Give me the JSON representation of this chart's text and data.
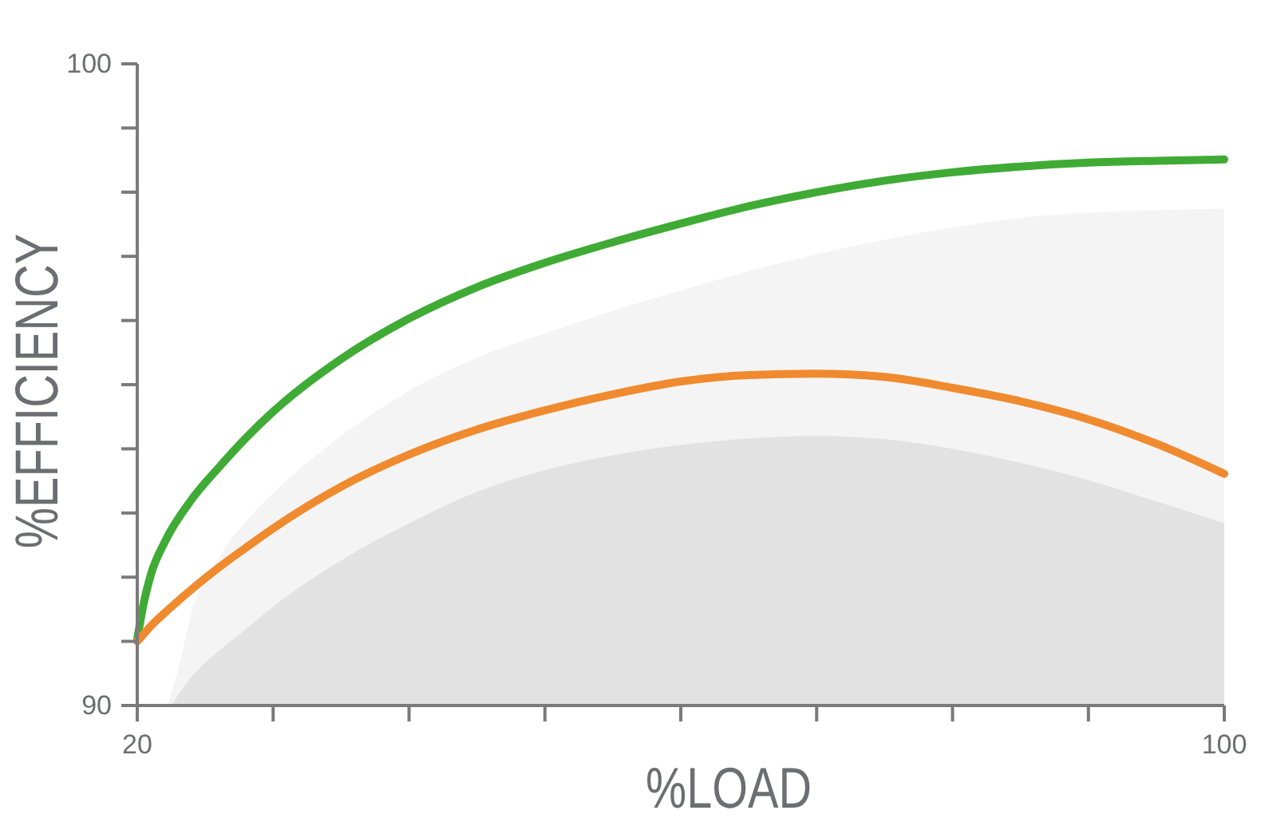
{
  "chart_data": {
    "type": "line",
    "xlabel": "%LOAD",
    "ylabel": "%EFFICIENCY",
    "xlim": [
      20,
      100
    ],
    "ylim": [
      90,
      100
    ],
    "xticks": [
      20,
      {
        "value": 30,
        "label": null
      },
      {
        "value": 40,
        "label": null
      },
      {
        "value": 50,
        "label": null
      },
      {
        "value": 60,
        "label": null
      },
      {
        "value": 70,
        "label": null
      },
      {
        "value": 80,
        "label": null
      },
      {
        "value": 90,
        "label": null
      },
      100
    ],
    "yticks": [
      90,
      {
        "value": 91,
        "label": null
      },
      {
        "value": 92,
        "label": null
      },
      {
        "value": 93,
        "label": null
      },
      {
        "value": 94,
        "label": null
      },
      {
        "value": 95,
        "label": null
      },
      {
        "value": 96,
        "label": null
      },
      {
        "value": 97,
        "label": null
      },
      {
        "value": 98,
        "label": null
      },
      {
        "value": 99,
        "label": null
      },
      100
    ],
    "x": [
      20,
      20.5,
      21,
      22,
      24,
      26,
      28,
      30,
      35,
      40,
      45,
      50,
      55,
      60,
      65,
      70,
      75,
      80,
      85,
      90,
      95,
      100
    ],
    "series": [
      {
        "type": "area",
        "color": "#f4f4f4",
        "x": [
          22.2,
          23,
          24,
          26,
          28,
          30,
          35,
          40,
          45,
          50,
          55,
          60,
          65,
          70,
          75,
          80,
          85,
          90,
          95,
          100
        ],
        "values": [
          90,
          90.55,
          91.45,
          92.3,
          92.87,
          93.31,
          94.2,
          94.9,
          95.42,
          95.8,
          96.15,
          96.47,
          96.77,
          97.03,
          97.26,
          97.45,
          97.6,
          97.68,
          97.72,
          97.74
        ]
      },
      {
        "type": "area",
        "color": "#e2e2e2",
        "x": [
          22.5,
          24,
          26,
          28,
          30,
          35,
          40,
          45,
          50,
          55,
          60,
          65,
          70,
          75,
          80,
          85,
          90,
          95,
          100
        ],
        "values": [
          90,
          90.45,
          90.85,
          91.19,
          91.54,
          92.26,
          92.84,
          93.33,
          93.67,
          93.9,
          94.06,
          94.16,
          94.2,
          94.15,
          94.0,
          93.78,
          93.51,
          93.18,
          92.84
        ]
      },
      {
        "color": "#3fab35",
        "values": [
          91.04,
          91.62,
          92.04,
          92.54,
          93.21,
          93.71,
          94.17,
          94.58,
          95.4,
          96.03,
          96.52,
          96.9,
          97.22,
          97.51,
          97.78,
          98.0,
          98.18,
          98.31,
          98.4,
          98.46,
          98.49,
          98.51
        ]
      },
      {
        "color": "#f08a2e",
        "values": [
          91.0,
          91.12,
          91.24,
          91.44,
          91.81,
          92.15,
          92.46,
          92.76,
          93.41,
          93.91,
          94.3,
          94.6,
          94.85,
          95.05,
          95.15,
          95.17,
          95.12,
          94.95,
          94.74,
          94.46,
          94.08,
          93.61
        ]
      }
    ]
  }
}
